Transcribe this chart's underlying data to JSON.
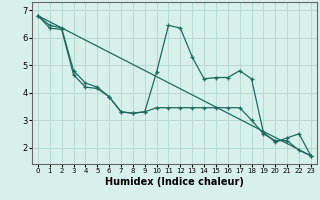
{
  "xlabel": "Humidex (Indice chaleur)",
  "ylabel": "",
  "bg_color": "#d8f0ec",
  "line_color": "#1e6b5e",
  "grid_color": "#b8d8d4",
  "xlim": [
    -0.5,
    23.5
  ],
  "ylim": [
    1.4,
    7.3
  ],
  "xticks": [
    0,
    1,
    2,
    3,
    4,
    5,
    6,
    7,
    8,
    9,
    10,
    11,
    12,
    13,
    14,
    15,
    16,
    17,
    18,
    19,
    20,
    21,
    22,
    23
  ],
  "yticks": [
    2,
    3,
    4,
    5,
    6,
    7
  ],
  "line1_x": [
    0,
    1,
    2,
    3,
    4,
    5,
    6,
    7,
    8,
    9,
    10,
    11,
    12,
    13,
    14,
    15,
    16,
    17,
    18,
    19,
    20,
    21,
    22,
    23
  ],
  "line1_y": [
    6.8,
    6.45,
    6.35,
    4.8,
    4.35,
    4.2,
    3.85,
    3.3,
    3.25,
    3.3,
    4.75,
    6.45,
    6.35,
    5.3,
    4.5,
    4.55,
    4.55,
    4.8,
    4.5,
    2.55,
    2.2,
    2.35,
    2.5,
    1.7
  ],
  "line2_x": [
    0,
    1,
    2,
    3,
    4,
    5,
    6,
    7,
    8,
    9,
    10,
    11,
    12,
    13,
    14,
    15,
    16,
    17,
    18,
    19,
    20,
    21,
    22,
    23
  ],
  "line2_y": [
    6.8,
    6.35,
    6.3,
    4.65,
    4.2,
    4.15,
    3.85,
    3.3,
    3.25,
    3.3,
    3.45,
    3.45,
    3.45,
    3.45,
    3.45,
    3.45,
    3.45,
    3.45,
    3.0,
    2.5,
    2.25,
    2.25,
    1.9,
    1.7
  ],
  "line3_x": [
    0,
    23
  ],
  "line3_y": [
    6.8,
    1.7
  ]
}
